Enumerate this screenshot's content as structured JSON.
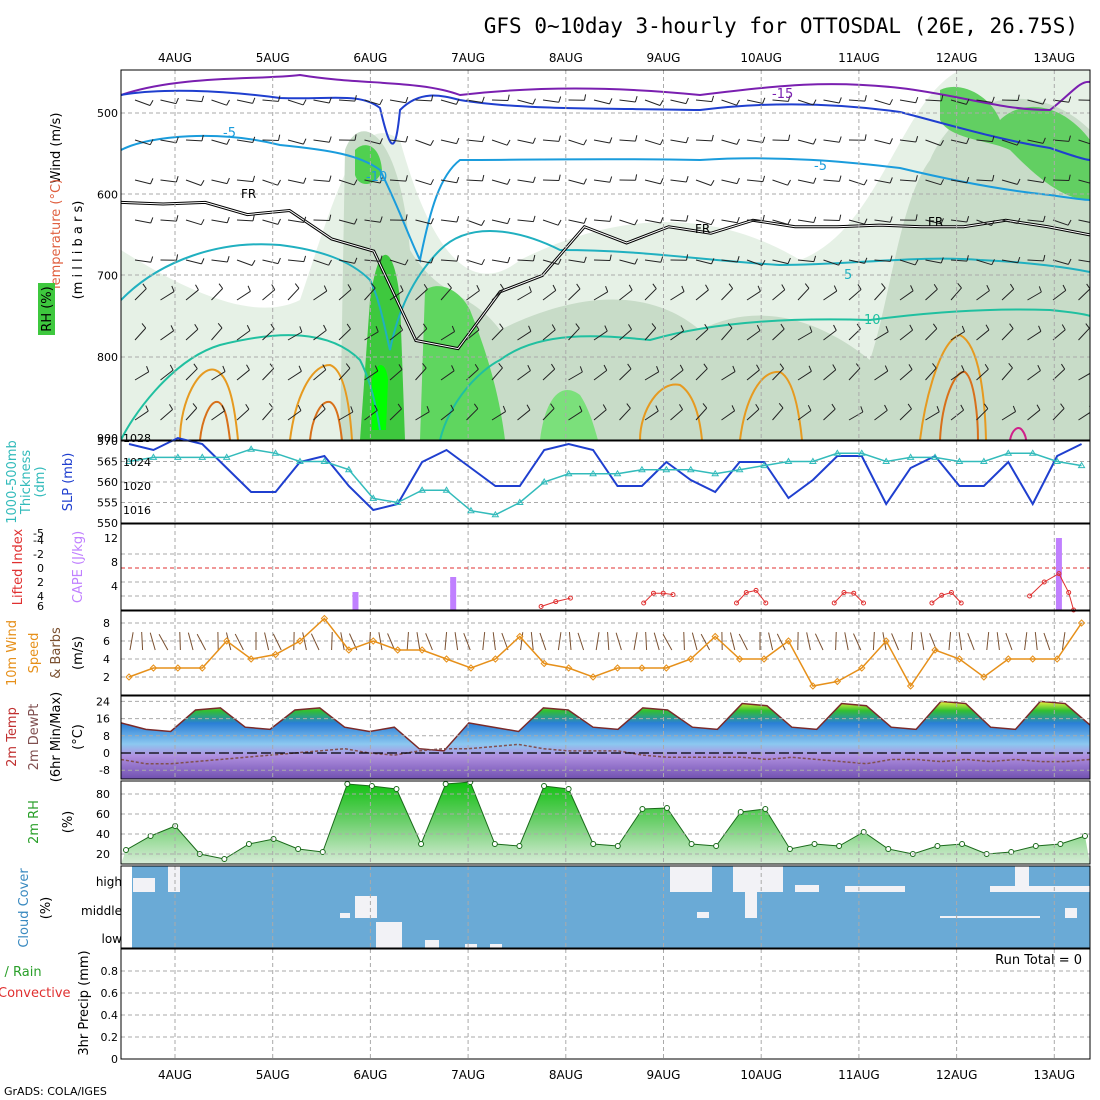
{
  "title": "GFS 0~10day 3-hourly for OTTOSDAL (26E, 26.75S)",
  "footer": "GrADS: COLA/IGES",
  "run_total": "Run Total = 0",
  "colors": {
    "rh_green": "#3ec83e",
    "temperature_line": "#1a9cdc",
    "freezing": "#000000",
    "cold_line": "#7a1fb0",
    "slp": "#1f3fcf",
    "thickness": "#33bbbb",
    "cape": "#c080ff",
    "lifted_index": "#e03030",
    "wind10m": "#e6901a",
    "barbs": "#7a5030",
    "cloud": "#6aaad6",
    "dewpoint": "#805050"
  },
  "x_axis": {
    "labels": [
      "4AUG",
      "5AUG",
      "6AUG",
      "7AUG",
      "8AUG",
      "9AUG",
      "10AUG",
      "11AUG",
      "12AUG",
      "13AUG"
    ]
  },
  "panel_labels": {
    "upper": [
      "Wind (m/s)",
      "Temperature (°C)",
      "RH (%)",
      "(m i l l i b a r s)"
    ],
    "slp": [
      "1000-500mb",
      "Thickness",
      "(dm)",
      "SLP (mb)"
    ],
    "cape": [
      "Lifted Index",
      "CAPE (J/kg)"
    ],
    "wind": [
      "10m Wind",
      "Speed",
      "& Barbs",
      "(m/s)"
    ],
    "temp": [
      "2m Temp",
      "2m DewPt",
      "(6hr Min/Max)",
      "(°C)"
    ],
    "rh": [
      "2m RH",
      "(%)"
    ],
    "cloud": [
      "Cloud Cover",
      "(%)"
    ],
    "precip": [
      "Total / Rain",
      "Convective",
      "3hr Precip (mm)"
    ]
  },
  "chart_data": [
    {
      "type": "heatmap",
      "name": "upper-air cross section",
      "y_ticks": [
        "500",
        "600",
        "700",
        "800",
        "900"
      ],
      "contour_labels": [
        "-15",
        "-5",
        "-5",
        "-10",
        "5",
        "-5",
        "10",
        "FR",
        "FR",
        "FR"
      ],
      "freezing_level_mb": [
        610,
        612,
        610,
        625,
        620,
        655,
        670,
        780,
        790,
        720,
        700,
        640,
        660,
        640,
        648,
        632,
        640,
        640,
        638,
        640,
        640,
        632,
        640,
        650
      ],
      "rh_high_days": [
        "6AUG",
        "7AUG",
        "12AUG",
        "13AUG"
      ]
    },
    {
      "type": "line",
      "name": "SLP and Thickness",
      "y_ticks_thickness": [
        "550",
        "555",
        "560",
        "565",
        "570"
      ],
      "y_ticks_slp": [
        "1016",
        "1020",
        "1024",
        "1028"
      ],
      "x": [
        0,
        0.25,
        0.5,
        0.75,
        1,
        1.25,
        1.5,
        1.75,
        2,
        2.25,
        2.5,
        2.75,
        3,
        3.25,
        3.5,
        3.75,
        4,
        4.25,
        4.5,
        4.75,
        5,
        5.25,
        5.5,
        5.75,
        6,
        6.25,
        6.5,
        6.75,
        7,
        7.25,
        7.5,
        7.75,
        8,
        8.25,
        8.5,
        8.75,
        9,
        9.25,
        9.5,
        9.75
      ],
      "series": [
        {
          "name": "SLP (mb)",
          "values": [
            1027,
            1026,
            1028,
            1027,
            1023,
            1019,
            1019,
            1024,
            1025,
            1020,
            1016,
            1017,
            1024,
            1026,
            1023,
            1020,
            1020,
            1026,
            1027,
            1026,
            1020,
            1020,
            1024,
            1021,
            1019,
            1024,
            1024,
            1018,
            1021,
            1025,
            1025,
            1017,
            1023,
            1025,
            1020,
            1020,
            1024,
            1017,
            1025,
            1027
          ]
        },
        {
          "name": "Thickness (dm)",
          "values": [
            565,
            566,
            566,
            566,
            566,
            568,
            567,
            565,
            565,
            563,
            556,
            555,
            558,
            558,
            553,
            552,
            555,
            560,
            562,
            562,
            562,
            563,
            563,
            563,
            562,
            563,
            564,
            565,
            565,
            567,
            567,
            565,
            566,
            566,
            565,
            565,
            567,
            567,
            565,
            564
          ]
        }
      ]
    },
    {
      "type": "bar",
      "name": "CAPE and Lifted Index",
      "y_ticks_li": [
        "-5",
        "-4",
        "-2",
        "0",
        "2",
        "4",
        "6"
      ],
      "y_ticks_cape": [
        "4",
        "8",
        "12"
      ],
      "cape_bars": [
        {
          "x": 2.4,
          "value": 3
        },
        {
          "x": 3.4,
          "value": 5.5
        },
        {
          "x": 9.6,
          "value": 12
        }
      ],
      "lifted_index": [
        [
          4.3,
          5.5
        ],
        [
          4.45,
          4.8
        ],
        [
          4.6,
          4.3
        ],
        [
          5.35,
          5
        ],
        [
          5.45,
          3.6
        ],
        [
          5.55,
          3.6
        ],
        [
          5.65,
          3.8
        ],
        [
          6.3,
          5
        ],
        [
          6.4,
          3.5
        ],
        [
          6.5,
          3.2
        ],
        [
          6.6,
          5
        ],
        [
          7.3,
          5
        ],
        [
          7.4,
          3.5
        ],
        [
          7.5,
          3.6
        ],
        [
          7.6,
          5
        ],
        [
          8.3,
          5
        ],
        [
          8.4,
          3.9
        ],
        [
          8.5,
          3.5
        ],
        [
          8.6,
          5
        ],
        [
          9.3,
          4
        ],
        [
          9.45,
          2
        ],
        [
          9.6,
          0.8
        ],
        [
          9.7,
          3.5
        ],
        [
          9.75,
          6
        ]
      ]
    },
    {
      "type": "line",
      "name": "10m wind speed",
      "y_ticks": [
        "2",
        "4",
        "6",
        "8"
      ],
      "x": [
        0,
        0.25,
        0.5,
        0.75,
        1,
        1.25,
        1.5,
        1.75,
        2,
        2.25,
        2.5,
        2.75,
        3,
        3.25,
        3.5,
        3.75,
        4,
        4.25,
        4.5,
        4.75,
        5,
        5.25,
        5.5,
        5.75,
        6,
        6.25,
        6.5,
        6.75,
        7,
        7.25,
        7.5,
        7.75,
        8,
        8.25,
        8.5,
        8.75,
        9,
        9.25,
        9.5,
        9.75
      ],
      "values": [
        2,
        3,
        3,
        3,
        6,
        4,
        4.5,
        6,
        8.5,
        5,
        6,
        5,
        5,
        4,
        3,
        4,
        6.5,
        3.5,
        3,
        2,
        3,
        3,
        3,
        4,
        6.5,
        4,
        4,
        6,
        1,
        1.5,
        3,
        6,
        1,
        5,
        4,
        2,
        4,
        4,
        4,
        8
      ]
    },
    {
      "type": "area",
      "name": "2m temperature and dewpoint",
      "y_ticks": [
        "-8",
        "0",
        "8",
        "16",
        "24"
      ],
      "x": [
        0,
        0.25,
        0.5,
        0.75,
        1,
        1.25,
        1.5,
        1.75,
        2,
        2.25,
        2.5,
        2.75,
        3,
        3.25,
        3.5,
        3.75,
        4,
        4.25,
        4.5,
        4.75,
        5,
        5.25,
        5.5,
        5.75,
        6,
        6.25,
        6.5,
        6.75,
        7,
        7.25,
        7.5,
        7.75,
        8,
        8.25,
        8.5,
        8.75,
        9,
        9.25,
        9.5,
        9.75
      ],
      "series": [
        {
          "name": "2m Temp",
          "values": [
            14,
            11,
            10,
            20,
            21,
            12,
            11,
            20,
            21,
            12,
            10,
            12,
            2,
            1,
            14,
            12,
            10,
            21,
            20,
            12,
            11,
            21,
            20,
            12,
            11,
            23,
            22,
            12,
            11,
            23,
            22,
            12,
            11,
            24,
            23,
            12,
            11,
            24,
            23,
            13
          ]
        },
        {
          "name": "2m DewPt",
          "values": [
            -3,
            -5,
            -5,
            -4,
            -3,
            -2,
            -1,
            0,
            1,
            2,
            0,
            -1,
            1,
            2,
            2,
            3,
            4,
            2,
            1,
            1,
            1,
            -1,
            -2,
            -2,
            -2,
            -2,
            -3,
            -2,
            -3,
            -4,
            -5,
            -3,
            -3,
            -4,
            -3,
            -4,
            -3,
            -4,
            -4,
            -3
          ]
        }
      ]
    },
    {
      "type": "area",
      "name": "2m RH",
      "y_ticks": [
        "20",
        "40",
        "60",
        "80"
      ],
      "x": [
        0,
        0.25,
        0.5,
        0.75,
        1,
        1.25,
        1.5,
        1.75,
        2,
        2.25,
        2.5,
        2.75,
        3,
        3.25,
        3.5,
        3.75,
        4,
        4.25,
        4.5,
        4.75,
        5,
        5.25,
        5.5,
        5.75,
        6,
        6.25,
        6.5,
        6.75,
        7,
        7.25,
        7.5,
        7.75,
        8,
        8.25,
        8.5,
        8.75,
        9,
        9.25,
        9.5,
        9.75
      ],
      "values": [
        24,
        38,
        48,
        20,
        15,
        30,
        35,
        25,
        22,
        90,
        88,
        85,
        30,
        90,
        92,
        30,
        28,
        88,
        85,
        30,
        28,
        65,
        66,
        30,
        28,
        62,
        65,
        25,
        30,
        28,
        42,
        25,
        20,
        28,
        30,
        20,
        22,
        28,
        30,
        38
      ]
    },
    {
      "type": "bar",
      "name": "Cloud cover",
      "y_ticks": [
        "high",
        "middle",
        "low"
      ]
    },
    {
      "type": "bar",
      "name": "3hr Precip",
      "y_ticks": [
        "0",
        "0.2",
        "0.4",
        "0.6",
        "0.8"
      ],
      "values": [
        0
      ]
    }
  ]
}
